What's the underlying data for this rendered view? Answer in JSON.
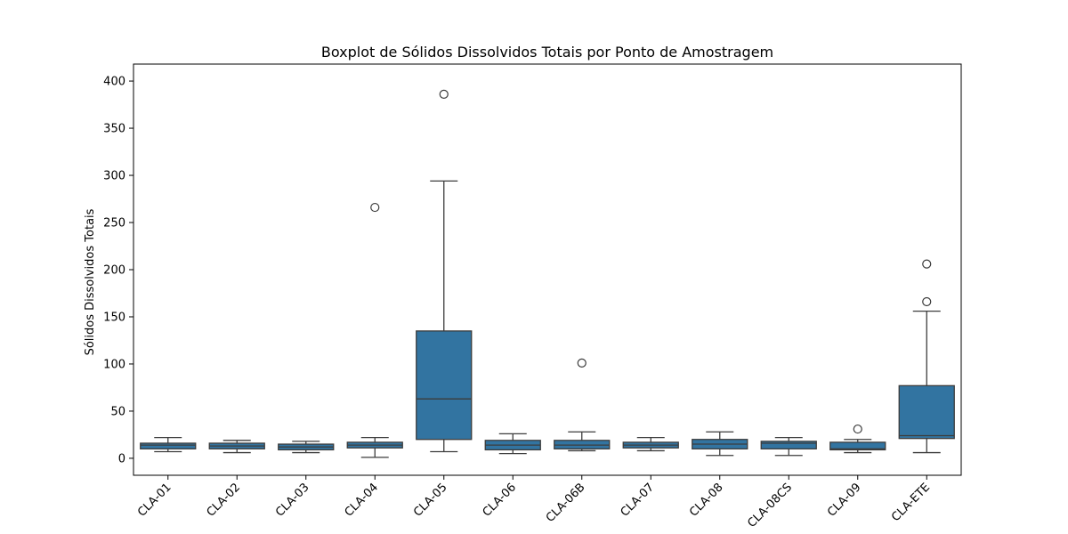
{
  "chart_data": {
    "type": "box",
    "title": "Boxplot de Sólidos Dissolvidos Totais por Ponto de Amostragem",
    "xlabel": "",
    "ylabel": "Sólidos Dissolvidos Totais",
    "ylim": [
      -18,
      418
    ],
    "yticks": [
      0,
      50,
      100,
      150,
      200,
      250,
      300,
      350,
      400
    ],
    "grid": false,
    "box_color": "#3274a1",
    "line_color": "#3c3c3c",
    "categories": [
      "CLA-01",
      "CLA-02",
      "CLA-03",
      "CLA-04",
      "CLA-05",
      "CLA-06",
      "CLA-06B",
      "CLA-07",
      "CLA-08",
      "CLA-08CS",
      "CLA-09",
      "CLA-ETE"
    ],
    "boxes": [
      {
        "category": "CLA-01",
        "whisker_low": 7,
        "q1": 10,
        "median": 14,
        "q3": 16,
        "whisker_high": 22,
        "outliers": []
      },
      {
        "category": "CLA-02",
        "whisker_low": 6,
        "q1": 10,
        "median": 13,
        "q3": 16,
        "whisker_high": 19,
        "outliers": []
      },
      {
        "category": "CLA-03",
        "whisker_low": 6,
        "q1": 9,
        "median": 12,
        "q3": 15,
        "whisker_high": 18,
        "outliers": []
      },
      {
        "category": "CLA-04",
        "whisker_low": 1,
        "q1": 11,
        "median": 14,
        "q3": 17,
        "whisker_high": 22,
        "outliers": [
          266
        ]
      },
      {
        "category": "CLA-05",
        "whisker_low": 7,
        "q1": 20,
        "median": 63,
        "q3": 135,
        "whisker_high": 294,
        "outliers": [
          386
        ]
      },
      {
        "category": "CLA-06",
        "whisker_low": 5,
        "q1": 9,
        "median": 14,
        "q3": 19,
        "whisker_high": 26,
        "outliers": []
      },
      {
        "category": "CLA-06B",
        "whisker_low": 8,
        "q1": 10,
        "median": 14,
        "q3": 19,
        "whisker_high": 28,
        "outliers": [
          101
        ]
      },
      {
        "category": "CLA-07",
        "whisker_low": 8,
        "q1": 11,
        "median": 14,
        "q3": 17,
        "whisker_high": 22,
        "outliers": []
      },
      {
        "category": "CLA-08",
        "whisker_low": 3,
        "q1": 10,
        "median": 15,
        "q3": 20,
        "whisker_high": 28,
        "outliers": []
      },
      {
        "category": "CLA-08CS",
        "whisker_low": 3,
        "q1": 10,
        "median": 16,
        "q3": 18,
        "whisker_high": 22,
        "outliers": []
      },
      {
        "category": "CLA-09",
        "whisker_low": 6,
        "q1": 9,
        "median": 10,
        "q3": 17,
        "whisker_high": 20,
        "outliers": [
          31
        ]
      },
      {
        "category": "CLA-ETE",
        "whisker_low": 6,
        "q1": 21,
        "median": 24,
        "q3": 77,
        "whisker_high": 156,
        "outliers": [
          166,
          206
        ]
      }
    ]
  }
}
